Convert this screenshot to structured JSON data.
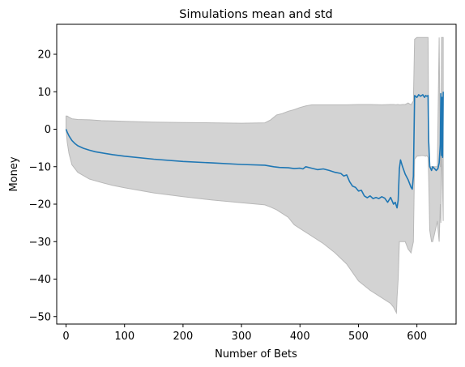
{
  "chart_data": {
    "type": "line",
    "title": "Simulations mean and std",
    "xlabel": "Number of Bets",
    "ylabel": "Money",
    "xlim": [
      -16,
      667
    ],
    "ylim": [
      -52,
      28
    ],
    "xticks": [
      0,
      100,
      200,
      300,
      400,
      500,
      600
    ],
    "yticks": [
      -50,
      -40,
      -30,
      -20,
      -10,
      0,
      10,
      20
    ],
    "grid": false,
    "colors": {
      "mean": "#1f77b4",
      "band": "#d3d3d3",
      "band_edge": "#b8b8b8"
    },
    "series": [
      {
        "x": [
          0,
          2,
          5,
          10,
          15,
          20,
          30,
          40,
          50,
          60,
          80,
          100,
          150,
          200,
          250,
          300,
          340,
          355,
          365,
          380,
          390,
          400,
          405,
          410,
          420,
          430,
          440,
          450,
          460,
          470,
          475,
          480,
          485,
          490,
          495,
          500,
          505,
          510,
          515,
          520,
          525,
          530,
          535,
          540,
          545,
          550,
          555,
          560,
          563,
          566,
          568,
          570,
          572,
          575,
          580,
          585,
          590,
          592,
          594,
          596,
          600,
          603,
          606,
          610,
          613,
          615,
          617,
          619,
          620,
          622,
          625,
          627,
          630,
          633,
          636,
          638,
          640,
          641,
          642,
          643,
          644,
          645
        ],
        "values": [
          0,
          -0.8,
          -1.8,
          -3,
          -3.8,
          -4.4,
          -5.1,
          -5.6,
          -6,
          -6.3,
          -6.8,
          -7.2,
          -8,
          -8.6,
          -9,
          -9.4,
          -9.6,
          -10,
          -10.2,
          -10.3,
          -10.5,
          -10.4,
          -10.6,
          -10,
          -10.4,
          -10.8,
          -10.6,
          -11,
          -11.5,
          -11.8,
          -12.5,
          -12.2,
          -14,
          -15.2,
          -15.5,
          -16.5,
          -16.3,
          -17.8,
          -18.3,
          -17.8,
          -18.5,
          -18.2,
          -18.5,
          -18,
          -18.4,
          -19.5,
          -18.2,
          -20,
          -19.5,
          -21,
          -19,
          -10.5,
          -8.2,
          -9.8,
          -12,
          -13.5,
          -15.5,
          -16,
          -12.5,
          9,
          8.5,
          9.2,
          8.8,
          9.2,
          8.5,
          9,
          8.8,
          9,
          -3,
          -10,
          -11,
          -10,
          -10.5,
          -11,
          -10.5,
          -9,
          -4,
          9.5,
          -7,
          8.5,
          -7.5,
          10
        ]
      }
    ],
    "band": {
      "x": [
        0,
        2,
        5,
        10,
        20,
        40,
        60,
        80,
        100,
        150,
        200,
        250,
        300,
        340,
        350,
        360,
        370,
        380,
        390,
        400,
        410,
        420,
        440,
        460,
        480,
        500,
        520,
        540,
        555,
        560,
        565,
        566,
        568,
        570,
        572,
        575,
        580,
        585,
        590,
        594,
        596,
        600,
        610,
        615,
        617,
        619,
        620,
        622,
        625,
        627,
        630,
        635,
        638,
        640,
        641,
        642,
        643,
        645
      ],
      "upper": [
        3.5,
        3.5,
        3.2,
        2.8,
        2.6,
        2.5,
        2.3,
        2.2,
        2.1,
        1.9,
        1.8,
        1.7,
        1.6,
        1.7,
        2.5,
        3.8,
        4.2,
        4.8,
        5.2,
        5.8,
        6.2,
        6.5,
        6.5,
        6.5,
        6.5,
        6.6,
        6.6,
        6.5,
        6.6,
        6.6,
        6.5,
        6.6,
        6.6,
        6.5,
        6.5,
        6.6,
        6.6,
        7,
        6.5,
        7.5,
        24,
        24.5,
        24.5,
        24.5,
        24.5,
        24.5,
        0,
        -10,
        -10,
        -10,
        -10,
        -10,
        24.5,
        -10,
        -10,
        24.5,
        24.5,
        24.5
      ],
      "lower": [
        0,
        -3.5,
        -6.5,
        -9.5,
        -11.5,
        -13.3,
        -14.2,
        -15,
        -15.6,
        -17,
        -18,
        -18.9,
        -19.6,
        -20.2,
        -20.8,
        -21.5,
        -22.5,
        -23.5,
        -25.5,
        -26.5,
        -27.5,
        -28.5,
        -30.5,
        -33,
        -36,
        -40.5,
        -43,
        -45,
        -46.5,
        -47.5,
        -49,
        -45,
        -40,
        -30,
        -30,
        -30,
        -30,
        -32,
        -33,
        -30,
        -8,
        -7.2,
        -7,
        -7.2,
        -7,
        -7.5,
        -12,
        -27,
        -30,
        -30,
        -28,
        -24.5,
        -30,
        -20,
        -25,
        -5,
        -10,
        -24.5
      ]
    }
  }
}
